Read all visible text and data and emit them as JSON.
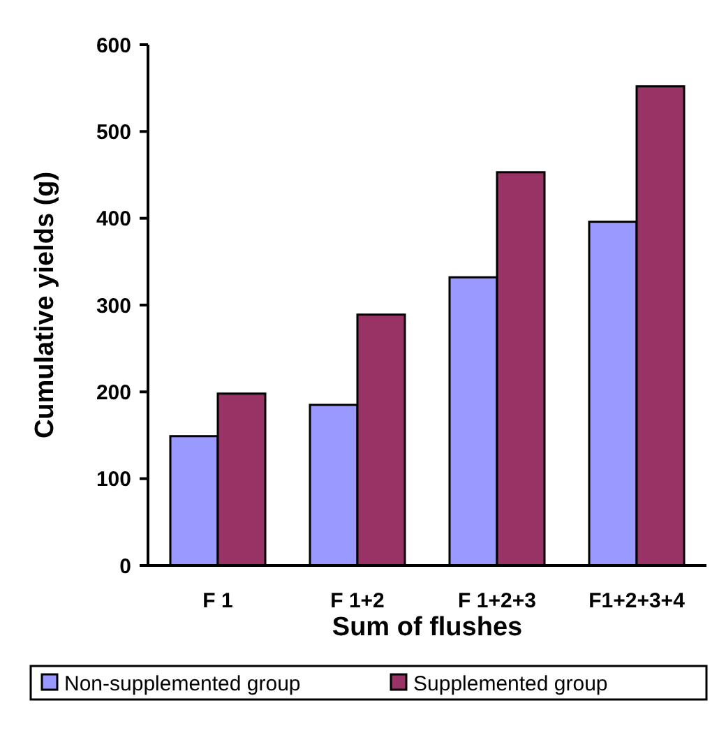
{
  "chart_data": {
    "type": "bar",
    "xlabel": "Sum of flushes",
    "ylabel": "Cumulative yields (g)",
    "categories": [
      "F 1",
      "F 1+2",
      "F 1+2+3",
      "F1+2+3+4"
    ],
    "series": [
      {
        "name": "Non-supplemented group",
        "color": "#9999ff",
        "values": [
          149,
          185,
          332,
          396
        ]
      },
      {
        "name": "Supplemented group",
        "color": "#993366",
        "values": [
          198,
          289,
          453,
          552
        ]
      }
    ],
    "ylim": [
      0,
      600
    ],
    "yticks": [
      0,
      100,
      200,
      300,
      400,
      500,
      600
    ],
    "grid": false,
    "legend": "bottom"
  }
}
